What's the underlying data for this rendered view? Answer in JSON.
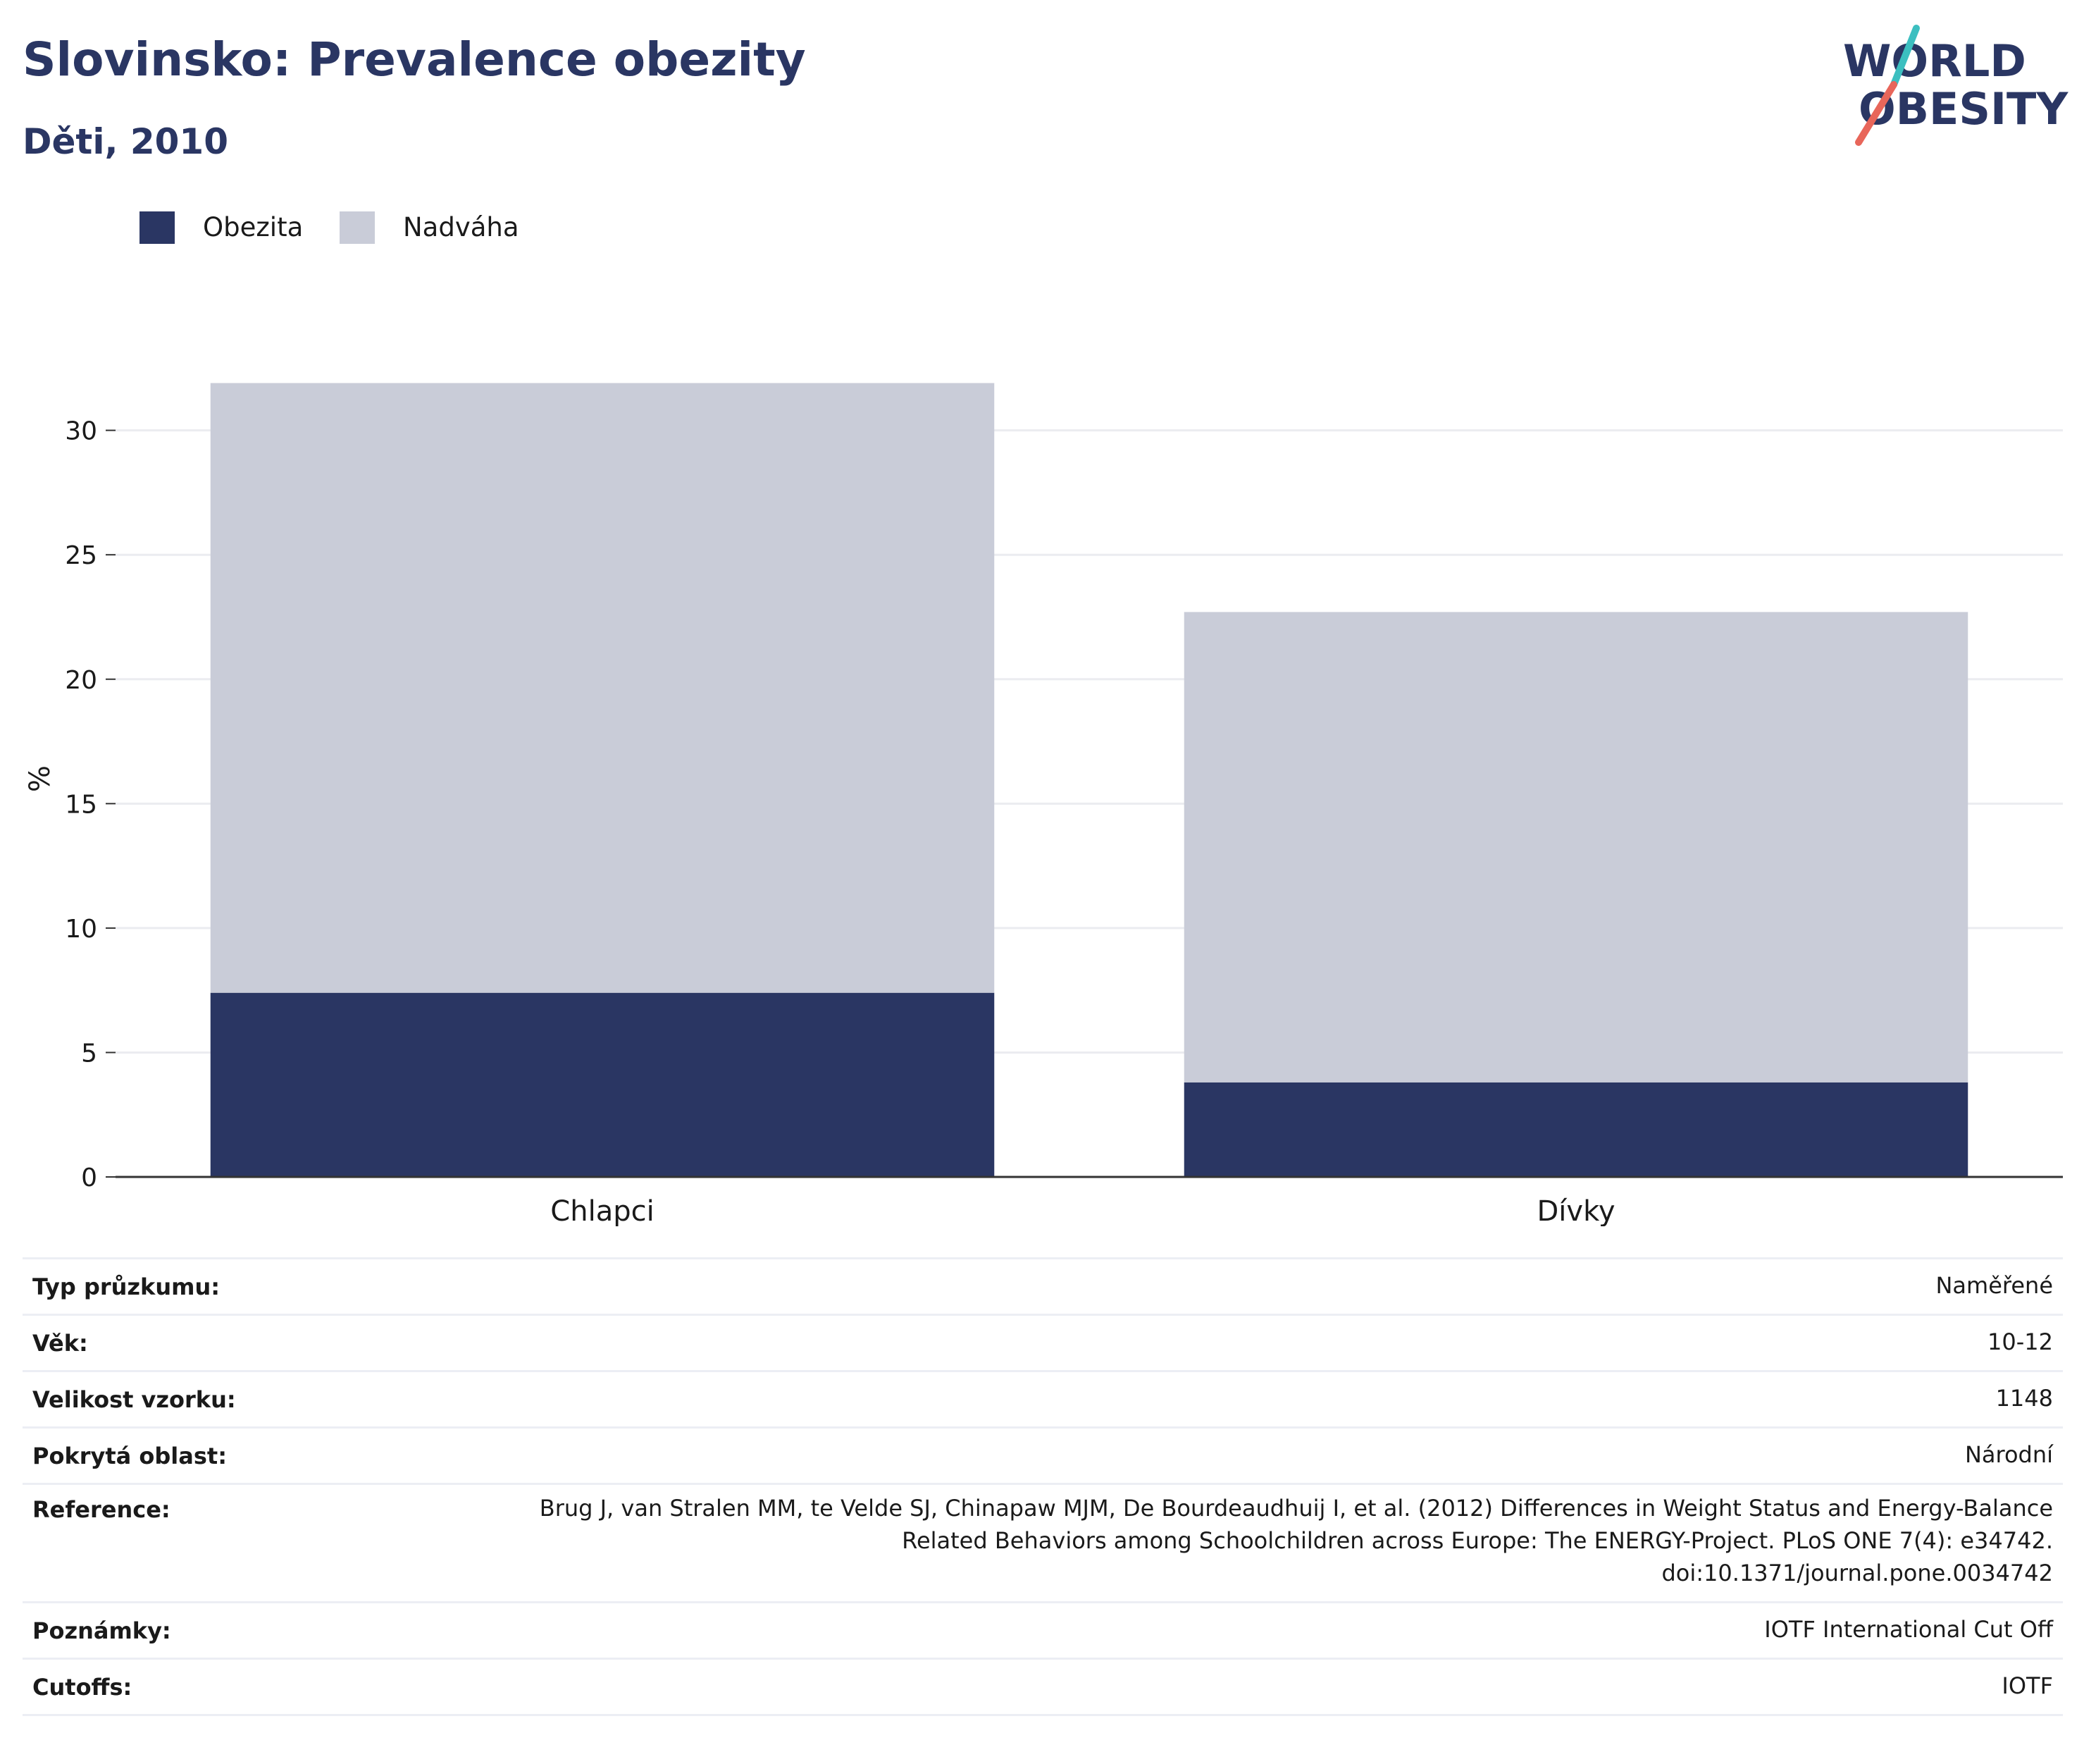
{
  "header": {
    "title": "Slovinsko: Prevalence obezity",
    "subtitle": "Děti, 2010"
  },
  "logo": {
    "line1": "WORLD",
    "line2": "OBESITY",
    "colors": {
      "text": "#2a3663",
      "slash_top": "#3cbfc0",
      "slash_bottom": "#e8665a"
    }
  },
  "colors": {
    "obezita": "#2a3663",
    "nadvaha": "#c9ccd8",
    "grid": "#ebecf0",
    "axis": "#333333"
  },
  "chart_data": {
    "type": "bar",
    "stacked": true,
    "categories": [
      "Chlapci",
      "Dívky"
    ],
    "series": [
      {
        "name": "Obezita",
        "values": [
          7.4,
          3.8
        ]
      },
      {
        "name": "Nadváha",
        "values": [
          24.5,
          18.9
        ]
      }
    ],
    "ylabel": "%",
    "xlabel": "",
    "ylim": [
      0,
      32
    ],
    "yticks": [
      0,
      5,
      10,
      15,
      20,
      25,
      30
    ],
    "grid": true,
    "legend": "top-left"
  },
  "info": [
    {
      "key": "Typ průzkumu:",
      "value": "Naměřené"
    },
    {
      "key": "Věk:",
      "value": "10-12"
    },
    {
      "key": "Velikost vzorku:",
      "value": "1148"
    },
    {
      "key": "Pokrytá oblast:",
      "value": "Národní"
    },
    {
      "key": "Reference:",
      "value_lines": [
        "Brug J, van Stralen MM, te Velde SJ, Chinapaw MJM, De Bourdeaudhuij I, et al. (2012) Differences in Weight Status and Energy-Balance",
        "Related Behaviors among Schoolchildren across Europe: The ENERGY-Project. PLoS ONE 7(4): e34742.",
        "doi:10.1371/journal.pone.0034742"
      ]
    },
    {
      "key": "Poznámky:",
      "value": "IOTF International Cut Off"
    },
    {
      "key": "Cutoffs:",
      "value": "IOTF"
    }
  ]
}
